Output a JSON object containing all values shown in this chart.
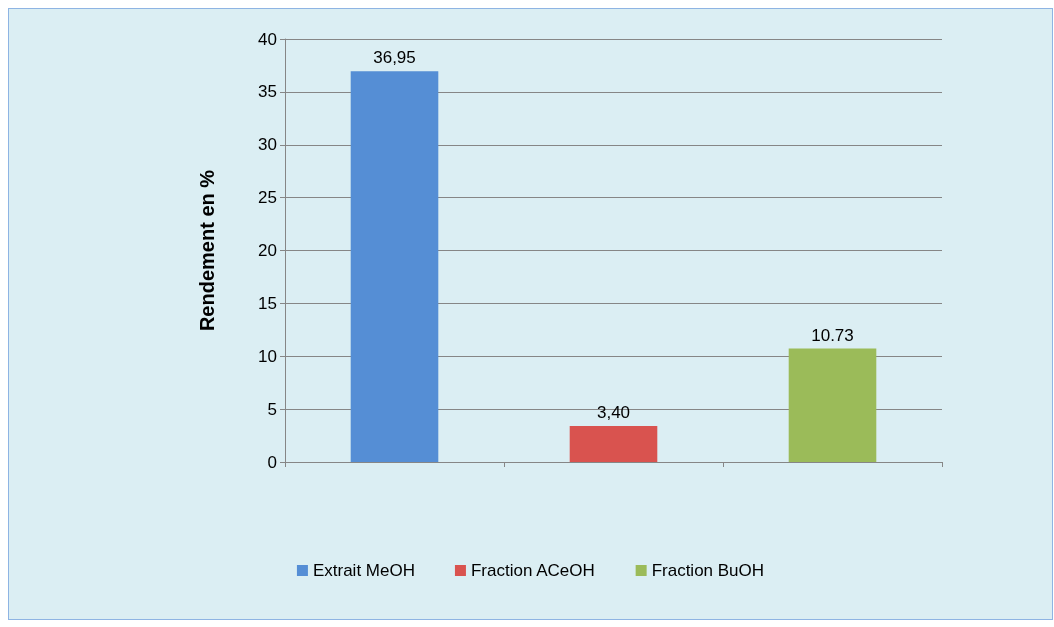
{
  "chart_data": {
    "type": "bar",
    "ylabel": "Rendement en %",
    "categories": [
      null,
      null,
      null
    ],
    "series": [
      {
        "name": "Extrait MeOH",
        "color": "#558ed5",
        "values": [
          36.95,
          null,
          null
        ],
        "value_labels": [
          "36,95",
          null,
          null
        ]
      },
      {
        "name": "Fraction ACeOH",
        "color": "#d9534f",
        "values": [
          null,
          3.4,
          null
        ],
        "value_labels": [
          null,
          "3,40",
          null
        ]
      },
      {
        "name": "Fraction BuOH",
        "color": "#9bbb59",
        "values": [
          null,
          null,
          10.73
        ],
        "value_labels": [
          null,
          null,
          "10.73"
        ]
      }
    ],
    "ylim": [
      0,
      40
    ],
    "yticks": [
      0,
      5,
      10,
      15,
      20,
      25,
      30,
      35,
      40
    ],
    "grid": "y",
    "legend": "bottom"
  }
}
